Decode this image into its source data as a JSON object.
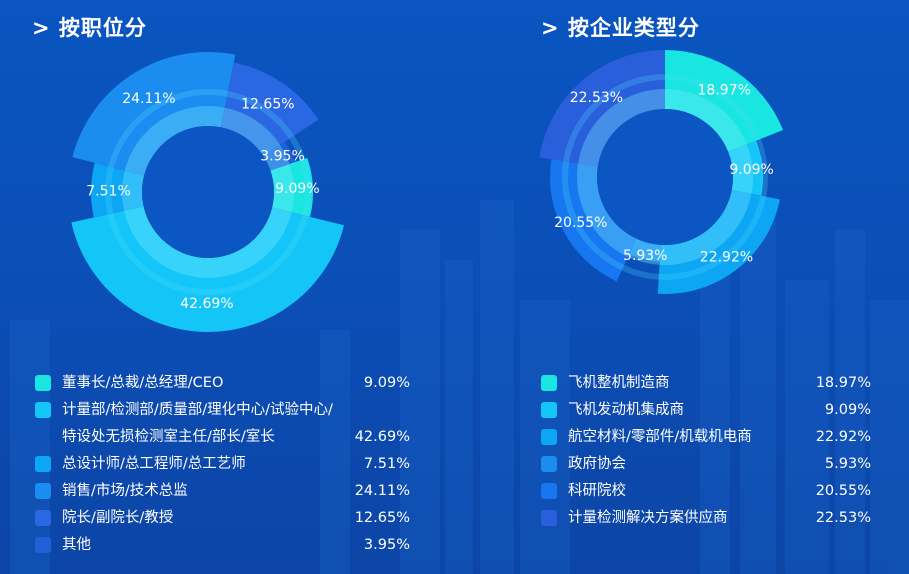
{
  "chart_data": [
    {
      "type": "pie",
      "title": "> 按职位分",
      "series": [
        {
          "label_lines": [
            "董事长/总裁/总经理/CEO"
          ],
          "value": 9.09,
          "value_label": "9.09%",
          "color": "#19e6e0"
        },
        {
          "label_lines": [
            "计量部/检测部/质量部/理化中心/试验中心/",
            "特设处无损检测室主任/部长/室长"
          ],
          "value": 42.69,
          "value_label": "42.69%",
          "color": "#14c6f7"
        },
        {
          "label_lines": [
            "总设计师/总工程师/总工艺师"
          ],
          "value": 7.51,
          "value_label": "7.51%",
          "color": "#0da6f4"
        },
        {
          "label_lines": [
            "销售/市场/技术总监"
          ],
          "value": 24.11,
          "value_label": "24.11%",
          "color": "#1b8cf0"
        },
        {
          "label_lines": [
            "院长/副院长/教授"
          ],
          "value": 12.65,
          "value_label": "12.65%",
          "color": "#2a67e2"
        },
        {
          "label_lines": [
            "其他"
          ],
          "value": 3.95,
          "value_label": "3.95%",
          "color": "#1f5fd8"
        }
      ]
    },
    {
      "type": "pie",
      "title": "> 按企业类型分",
      "series": [
        {
          "label_lines": [
            "飞机整机制造商"
          ],
          "value": 18.97,
          "value_label": "18.97%",
          "color": "#19e6e0"
        },
        {
          "label_lines": [
            "飞机发动机集成商"
          ],
          "value": 9.09,
          "value_label": "9.09%",
          "color": "#14c6f7"
        },
        {
          "label_lines": [
            "航空材料/零部件/机载机电商"
          ],
          "value": 22.92,
          "value_label": "22.92%",
          "color": "#0da6f4"
        },
        {
          "label_lines": [
            "政府协会"
          ],
          "value": 5.93,
          "value_label": "5.93%",
          "color": "#1b8cf0"
        },
        {
          "label_lines": [
            "科研院校"
          ],
          "value": 20.55,
          "value_label": "20.55%",
          "color": "#1677f0"
        },
        {
          "label_lines": [
            "计量检测解决方案供应商"
          ],
          "value": 22.53,
          "value_label": "22.53%",
          "color": "#2a5fdc"
        }
      ]
    }
  ]
}
